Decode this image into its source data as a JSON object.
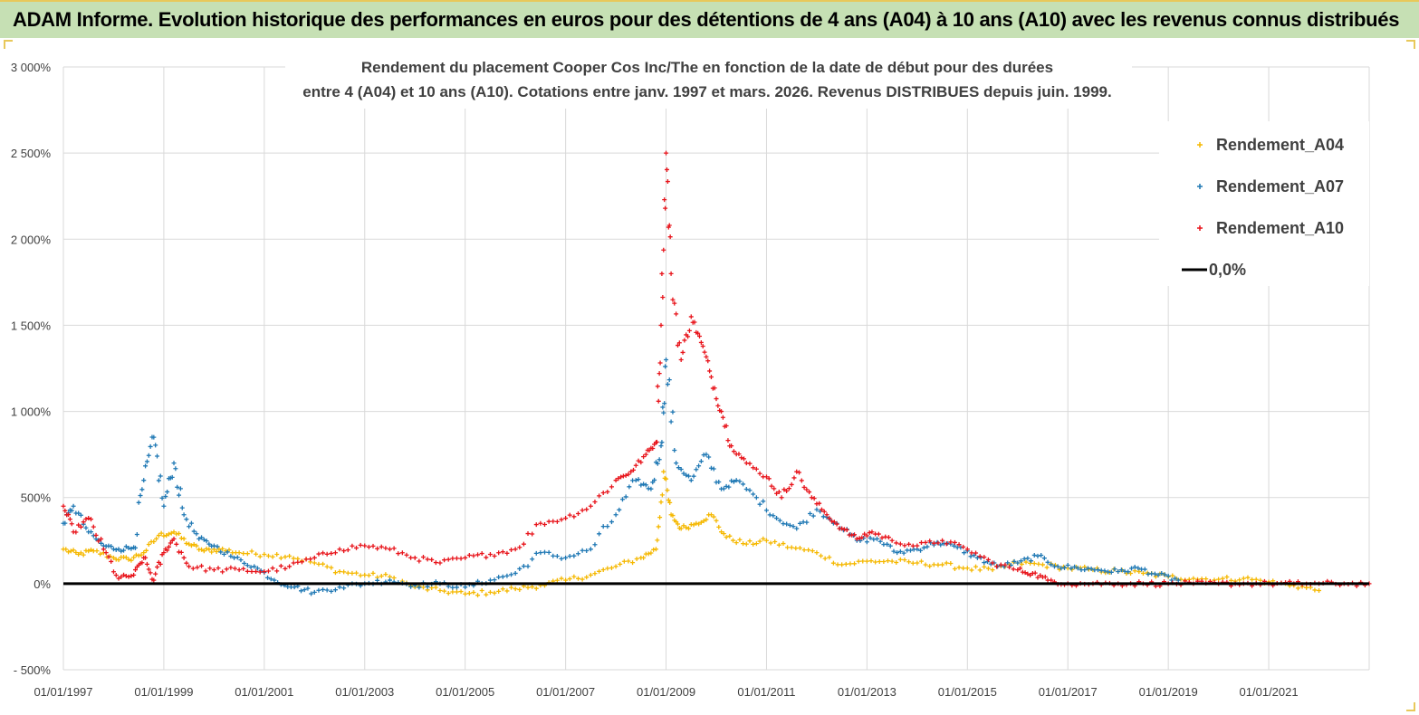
{
  "header": {
    "title": "ADAM Informe. Evolution historique des performances en euros pour des détentions de 4 ans (A04) à 10 ans (A10) avec les revenus connus distribués"
  },
  "chart_data": {
    "type": "scatter",
    "title_line1": "Rendement du placement Cooper Cos Inc/The en fonction de la date de début pour des durées",
    "title_line2": "entre 4 (A04) et 10 ans (A10). Cotations entre janv. 1997 et mars. 2026. Revenus DISTRIBUES depuis juin. 1999.",
    "xlabel": "",
    "ylabel": "",
    "x_ticks": [
      "01/01/1997",
      "01/01/1999",
      "01/01/2001",
      "01/01/2003",
      "01/01/2005",
      "01/01/2007",
      "01/01/2009",
      "01/01/2011",
      "01/01/2013",
      "01/01/2015",
      "01/01/2017",
      "01/01/2019",
      "01/01/2021"
    ],
    "y_ticks": [
      "- 500%",
      "0%",
      "500%",
      "1 000%",
      "1 500%",
      "2 000%",
      "2 500%",
      "3 000%"
    ],
    "xlim": [
      1997.0,
      2023.0
    ],
    "ylim": [
      -500,
      3000
    ],
    "grid": true,
    "legend_position": "top-right",
    "series": [
      {
        "name": "Rendement_A04",
        "color": "#f5b800",
        "x": [
          1997.0,
          1997.3,
          1997.6,
          1998.0,
          1998.3,
          1998.6,
          1998.9,
          1999.2,
          1999.5,
          1999.8,
          2000.1,
          2000.5,
          2001.0,
          2001.5,
          2002.0,
          2002.5,
          2003.0,
          2003.5,
          2004.0,
          2004.5,
          2005.0,
          2005.5,
          2006.0,
          2006.5,
          2007.0,
          2007.5,
          2008.0,
          2008.5,
          2008.8,
          2008.95,
          2009.1,
          2009.3,
          2009.6,
          2009.9,
          2010.2,
          2010.6,
          2011.0,
          2011.5,
          2012.0,
          2012.5,
          2013.0,
          2013.5,
          2014.0,
          2014.5,
          2015.0,
          2015.5,
          2016.0,
          2016.5,
          2017.0,
          2017.5,
          2018.0,
          2018.5,
          2019.0,
          2019.5,
          2020.0,
          2020.5,
          2021.0,
          2021.5,
          2022.0
        ],
        "y": [
          200,
          170,
          190,
          150,
          140,
          180,
          280,
          300,
          230,
          190,
          200,
          180,
          170,
          160,
          120,
          70,
          50,
          40,
          -20,
          -40,
          -60,
          -50,
          -30,
          -10,
          20,
          50,
          100,
          150,
          200,
          650,
          400,
          320,
          350,
          400,
          270,
          230,
          250,
          210,
          180,
          110,
          130,
          130,
          120,
          110,
          90,
          80,
          120,
          110,
          90,
          80,
          70,
          60,
          40,
          30,
          25,
          30,
          10,
          -10,
          -40
        ]
      },
      {
        "name": "Rendement_A07",
        "color": "#1f78b4",
        "x": [
          1997.0,
          1997.2,
          1997.5,
          1997.8,
          1998.1,
          1998.4,
          1998.6,
          1998.8,
          1999.0,
          1999.2,
          1999.4,
          1999.7,
          2000.0,
          2000.4,
          2000.8,
          2001.2,
          2001.6,
          2002.0,
          2002.5,
          2003.0,
          2003.5,
          2004.0,
          2004.5,
          2005.0,
          2005.5,
          2006.0,
          2006.5,
          2007.0,
          2007.5,
          2008.0,
          2008.4,
          2008.7,
          2008.9,
          2009.0,
          2009.2,
          2009.5,
          2009.8,
          2010.1,
          2010.4,
          2010.8,
          2011.2,
          2011.6,
          2012.0,
          2012.4,
          2012.8,
          2013.2,
          2013.6,
          2014.0,
          2014.4,
          2014.8,
          2015.2,
          2015.6,
          2016.0,
          2016.4,
          2016.8,
          2017.2,
          2017.6,
          2018.0,
          2018.4,
          2018.8,
          2019.2
        ],
        "y": [
          350,
          450,
          300,
          220,
          200,
          210,
          600,
          850,
          450,
          700,
          400,
          260,
          220,
          150,
          100,
          20,
          -20,
          -50,
          -20,
          0,
          20,
          -10,
          0,
          -20,
          20,
          60,
          180,
          150,
          200,
          400,
          600,
          550,
          800,
          1300,
          700,
          600,
          750,
          550,
          600,
          500,
          380,
          320,
          430,
          350,
          250,
          260,
          180,
          200,
          240,
          210,
          150,
          100,
          120,
          160,
          100,
          90,
          80,
          70,
          90,
          50,
          20
        ]
      },
      {
        "name": "Rendement_A10",
        "color": "#e8141b",
        "x": [
          1997.0,
          1997.2,
          1997.5,
          1997.8,
          1998.1,
          1998.4,
          1998.6,
          1998.8,
          1999.0,
          1999.2,
          1999.5,
          2000.0,
          2000.5,
          2001.0,
          2001.5,
          2002.0,
          2002.5,
          2003.0,
          2003.5,
          2004.0,
          2004.5,
          2005.0,
          2005.5,
          2006.0,
          2006.5,
          2007.0,
          2007.5,
          2008.0,
          2008.3,
          2008.6,
          2008.8,
          2008.9,
          2009.0,
          2009.1,
          2009.3,
          2009.5,
          2009.7,
          2009.9,
          2010.1,
          2010.3,
          2010.6,
          2011.0,
          2011.3,
          2011.6,
          2011.9,
          2012.2,
          2012.5,
          2012.8,
          2013.1,
          2013.5,
          2014.0,
          2014.5,
          2015.0,
          2015.5,
          2016.0,
          2016.3,
          2016.6,
          2017.0,
          2017.5,
          2018.0,
          2018.5,
          2019.0,
          2019.5,
          2020.0,
          2020.5,
          2021.0,
          2021.5,
          2022.0,
          2022.5,
          2023.0
        ],
        "y": [
          450,
          300,
          380,
          200,
          30,
          50,
          150,
          20,
          180,
          260,
          100,
          80,
          80,
          70,
          100,
          150,
          200,
          220,
          200,
          150,
          120,
          150,
          170,
          200,
          350,
          380,
          450,
          600,
          650,
          750,
          820,
          1500,
          2500,
          1800,
          1300,
          1550,
          1400,
          1200,
          1000,
          800,
          700,
          620,
          500,
          650,
          500,
          400,
          320,
          260,
          300,
          250,
          220,
          250,
          200,
          120,
          80,
          60,
          20,
          0,
          0,
          0,
          0,
          0,
          0,
          0,
          0,
          0,
          0,
          0,
          0,
          0
        ]
      },
      {
        "name": "0,0%",
        "color": "#000000",
        "type": "line",
        "x": [
          1997.0,
          2023.0
        ],
        "y": [
          0,
          0
        ]
      }
    ]
  }
}
